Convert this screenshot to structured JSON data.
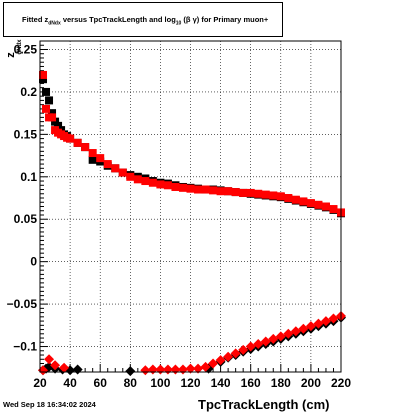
{
  "title": {
    "prefix": "Fitted  z",
    "z_subscript": "dNdx",
    "middle": "  versus TpcTrackLength and log",
    "log_subscript": "10",
    "suffix": " (β γ) for Primary muon+"
  },
  "timestamp": "Wed Sep 18 16:34:02 2024",
  "chart_data": {
    "type": "scatter",
    "xlabel": "TpcTrackLength (cm)",
    "ylabel": "z",
    "ylabel_subscript": "dNdx",
    "xlim": [
      20,
      220
    ],
    "ylim": [
      -0.13,
      0.26
    ],
    "x_ticks": [
      20,
      40,
      60,
      80,
      100,
      120,
      140,
      160,
      180,
      200,
      220
    ],
    "y_ticks": [
      -0.1,
      -0.05,
      0,
      0.05,
      0.1,
      0.15,
      0.2,
      0.25
    ],
    "y_tick_labels": [
      "−0.1",
      "−0.05",
      "0",
      "0.05",
      "0.1",
      "0.15",
      "0.2",
      "0.25"
    ],
    "grid": true,
    "series": [
      {
        "color": "#000000",
        "marker": "square",
        "points": [
          [
            22,
            0.215
          ],
          [
            24,
            0.2
          ],
          [
            26,
            0.19
          ],
          [
            28,
            0.175
          ],
          [
            30,
            0.165
          ],
          [
            32,
            0.16
          ],
          [
            34,
            0.155
          ],
          [
            36,
            0.15
          ],
          [
            38,
            0.148
          ],
          [
            40,
            0.145
          ],
          [
            45,
            0.14
          ],
          [
            50,
            0.135
          ],
          [
            55,
            0.12
          ],
          [
            60,
            0.118
          ],
          [
            65,
            0.113
          ],
          [
            70,
            0.11
          ],
          [
            75,
            0.105
          ],
          [
            80,
            0.102
          ],
          [
            85,
            0.1
          ],
          [
            90,
            0.098
          ],
          [
            95,
            0.095
          ],
          [
            100,
            0.093
          ],
          [
            105,
            0.092
          ],
          [
            110,
            0.09
          ],
          [
            115,
            0.088
          ],
          [
            120,
            0.087
          ],
          [
            125,
            0.086
          ],
          [
            130,
            0.085
          ],
          [
            135,
            0.085
          ],
          [
            140,
            0.084
          ],
          [
            145,
            0.083
          ],
          [
            150,
            0.082
          ],
          [
            155,
            0.081
          ],
          [
            160,
            0.08
          ],
          [
            165,
            0.079
          ],
          [
            170,
            0.078
          ],
          [
            175,
            0.077
          ],
          [
            180,
            0.076
          ],
          [
            185,
            0.074
          ],
          [
            190,
            0.072
          ],
          [
            195,
            0.07
          ],
          [
            200,
            0.068
          ],
          [
            205,
            0.066
          ],
          [
            210,
            0.064
          ],
          [
            215,
            0.061
          ],
          [
            220,
            0.057
          ]
        ]
      },
      {
        "color": "#ff0000",
        "marker": "square",
        "points": [
          [
            22,
            0.22
          ],
          [
            24,
            0.18
          ],
          [
            26,
            0.17
          ],
          [
            28,
            0.17
          ],
          [
            30,
            0.155
          ],
          [
            32,
            0.152
          ],
          [
            34,
            0.15
          ],
          [
            36,
            0.148
          ],
          [
            38,
            0.146
          ],
          [
            40,
            0.145
          ],
          [
            45,
            0.14
          ],
          [
            50,
            0.135
          ],
          [
            55,
            0.128
          ],
          [
            60,
            0.122
          ],
          [
            65,
            0.115
          ],
          [
            70,
            0.11
          ],
          [
            75,
            0.105
          ],
          [
            80,
            0.1
          ],
          [
            85,
            0.097
          ],
          [
            90,
            0.095
          ],
          [
            95,
            0.093
          ],
          [
            100,
            0.091
          ],
          [
            105,
            0.09
          ],
          [
            110,
            0.088
          ],
          [
            115,
            0.087
          ],
          [
            120,
            0.086
          ],
          [
            125,
            0.085
          ],
          [
            130,
            0.085
          ],
          [
            135,
            0.084
          ],
          [
            140,
            0.083
          ],
          [
            145,
            0.083
          ],
          [
            150,
            0.082
          ],
          [
            155,
            0.081
          ],
          [
            160,
            0.081
          ],
          [
            165,
            0.08
          ],
          [
            170,
            0.079
          ],
          [
            175,
            0.078
          ],
          [
            180,
            0.077
          ],
          [
            185,
            0.075
          ],
          [
            190,
            0.073
          ],
          [
            195,
            0.071
          ],
          [
            200,
            0.069
          ],
          [
            205,
            0.067
          ],
          [
            210,
            0.065
          ],
          [
            215,
            0.062
          ],
          [
            220,
            0.058
          ]
        ]
      },
      {
        "color": "#000000",
        "marker": "diamond",
        "points": [
          [
            22,
            -0.128
          ],
          [
            24,
            -0.126
          ],
          [
            26,
            -0.124
          ],
          [
            30,
            -0.126
          ],
          [
            35,
            -0.127
          ],
          [
            40,
            -0.128
          ],
          [
            45,
            -0.127
          ],
          [
            80,
            -0.129
          ],
          [
            132,
            -0.126
          ],
          [
            140,
            -0.118
          ],
          [
            145,
            -0.113
          ],
          [
            150,
            -0.11
          ],
          [
            155,
            -0.106
          ],
          [
            160,
            -0.103
          ],
          [
            165,
            -0.1
          ],
          [
            170,
            -0.097
          ],
          [
            175,
            -0.094
          ],
          [
            180,
            -0.091
          ],
          [
            185,
            -0.088
          ],
          [
            190,
            -0.085
          ],
          [
            195,
            -0.082
          ],
          [
            200,
            -0.079
          ],
          [
            205,
            -0.076
          ],
          [
            210,
            -0.073
          ],
          [
            215,
            -0.07
          ],
          [
            220,
            -0.066
          ]
        ]
      },
      {
        "color": "#ff0000",
        "marker": "diamond",
        "points": [
          [
            22,
            -0.128
          ],
          [
            26,
            -0.115
          ],
          [
            30,
            -0.122
          ],
          [
            36,
            -0.125
          ],
          [
            90,
            -0.128
          ],
          [
            95,
            -0.127
          ],
          [
            100,
            -0.127
          ],
          [
            105,
            -0.127
          ],
          [
            110,
            -0.127
          ],
          [
            115,
            -0.127
          ],
          [
            120,
            -0.126
          ],
          [
            125,
            -0.126
          ],
          [
            130,
            -0.124
          ],
          [
            135,
            -0.12
          ],
          [
            140,
            -0.116
          ],
          [
            145,
            -0.112
          ],
          [
            150,
            -0.108
          ],
          [
            155,
            -0.104
          ],
          [
            160,
            -0.1
          ],
          [
            165,
            -0.097
          ],
          [
            170,
            -0.094
          ],
          [
            175,
            -0.091
          ],
          [
            180,
            -0.088
          ],
          [
            185,
            -0.085
          ],
          [
            190,
            -0.082
          ],
          [
            195,
            -0.079
          ],
          [
            200,
            -0.076
          ],
          [
            205,
            -0.073
          ],
          [
            210,
            -0.07
          ],
          [
            215,
            -0.067
          ],
          [
            220,
            -0.064
          ]
        ]
      }
    ]
  }
}
